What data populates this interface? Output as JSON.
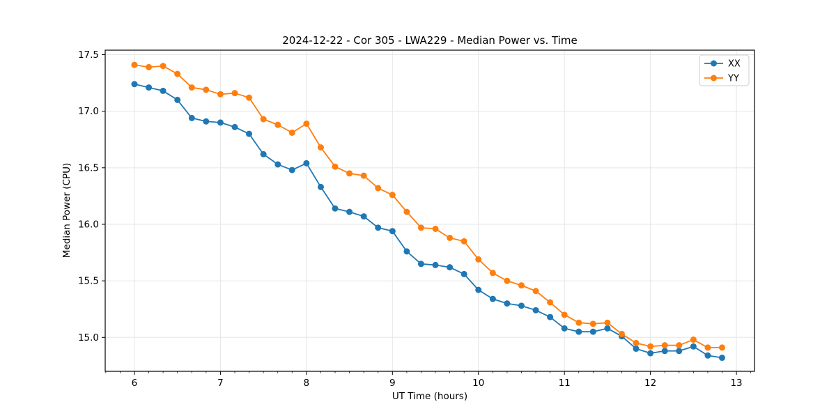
{
  "figure": {
    "background": "#ffffff"
  },
  "chart_data": {
    "type": "line",
    "title": "2024-12-22 - Cor 305 - LWA229 - Median Power vs. Time",
    "xlabel": "UT Time (hours)",
    "ylabel": "Median Power (CPU)",
    "xlim": [
      5.66,
      13.21
    ],
    "ylim": [
      14.7,
      17.54
    ],
    "xticks": [
      6,
      7,
      8,
      9,
      10,
      11,
      12,
      13
    ],
    "xtick_labels": [
      "6",
      "7",
      "8",
      "9",
      "10",
      "11",
      "12",
      "13"
    ],
    "yticks": [
      15.0,
      15.5,
      16.0,
      16.5,
      17.0,
      17.5
    ],
    "ytick_labels": [
      "15.0",
      "15.5",
      "16.0",
      "16.5",
      "17.0",
      "17.5"
    ],
    "minor_xtick_step": 0.166667,
    "grid": true,
    "grid_color": "#e6e6e6",
    "legend_position": "upper right",
    "x": [
      6.0,
      6.167,
      6.333,
      6.5,
      6.667,
      6.833,
      7.0,
      7.167,
      7.333,
      7.5,
      7.667,
      7.833,
      8.0,
      8.167,
      8.333,
      8.5,
      8.667,
      8.833,
      9.0,
      9.167,
      9.333,
      9.5,
      9.667,
      9.833,
      10.0,
      10.167,
      10.333,
      10.5,
      10.667,
      10.833,
      11.0,
      11.167,
      11.333,
      11.5,
      11.667,
      11.833,
      12.0,
      12.167,
      12.333,
      12.5,
      12.667,
      12.833
    ],
    "series": [
      {
        "name": "XX",
        "color": "#1f77b4",
        "values": [
          17.24,
          17.21,
          17.18,
          17.1,
          16.94,
          16.91,
          16.9,
          16.86,
          16.8,
          16.62,
          16.53,
          16.48,
          16.54,
          16.33,
          16.14,
          16.11,
          16.07,
          15.97,
          15.94,
          15.76,
          15.65,
          15.64,
          15.62,
          15.56,
          15.42,
          15.34,
          15.3,
          15.28,
          15.24,
          15.18,
          15.08,
          15.05,
          15.05,
          15.08,
          15.01,
          14.9,
          14.86,
          14.88,
          14.88,
          14.92,
          14.84,
          14.82
        ]
      },
      {
        "name": "YY",
        "color": "#ff7f0e",
        "values": [
          17.41,
          17.39,
          17.4,
          17.33,
          17.21,
          17.19,
          17.15,
          17.16,
          17.12,
          16.93,
          16.88,
          16.81,
          16.89,
          16.68,
          16.51,
          16.45,
          16.43,
          16.32,
          16.26,
          16.11,
          15.97,
          15.96,
          15.88,
          15.85,
          15.69,
          15.57,
          15.5,
          15.46,
          15.41,
          15.31,
          15.2,
          15.13,
          15.12,
          15.13,
          15.03,
          14.95,
          14.92,
          14.93,
          14.93,
          14.98,
          14.91,
          14.91
        ]
      }
    ]
  }
}
